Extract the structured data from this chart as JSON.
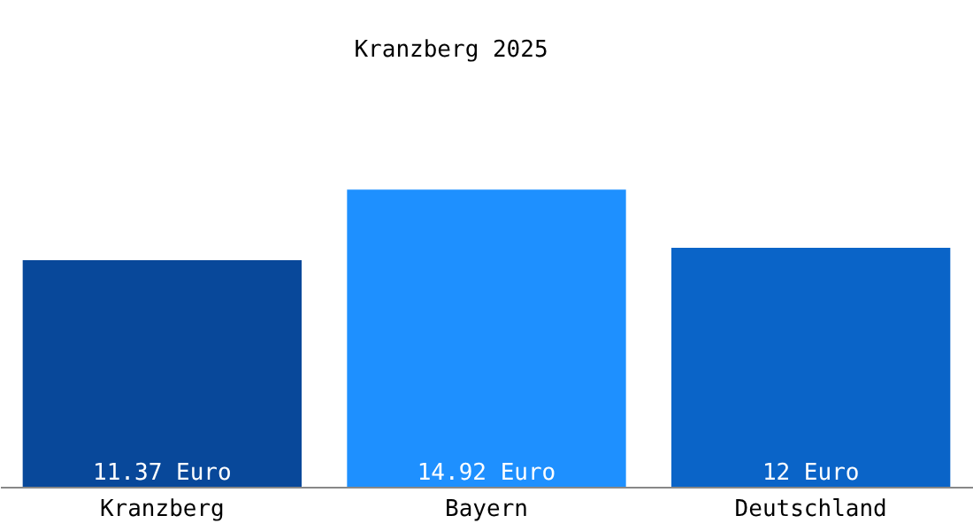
{
  "chart_data": {
    "type": "bar",
    "title": "Kranzberg 2025",
    "categories": [
      "Kranzberg",
      "Bayern",
      "Deutschland"
    ],
    "values": [
      11.37,
      14.92,
      12
    ],
    "colors": [
      "#08489a",
      "#1e90ff",
      "#0a64c8"
    ],
    "value_labels": [
      "11.37 Euro",
      "14.92 Euro",
      "12 Euro"
    ]
  }
}
